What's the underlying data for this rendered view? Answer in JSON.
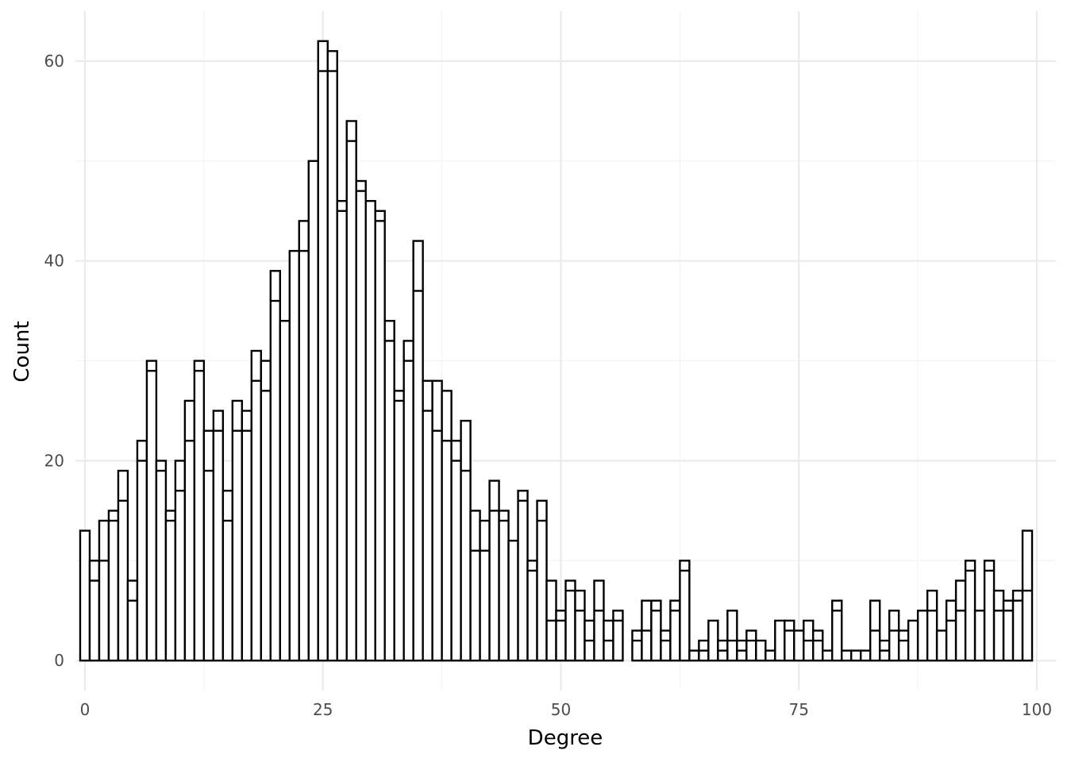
{
  "chart_data": {
    "type": "bar",
    "xlabel": "Degree",
    "ylabel": "Count",
    "xlim": [
      -1,
      102
    ],
    "ylim": [
      -3,
      65
    ],
    "xticks": [
      0,
      25,
      50,
      75,
      100
    ],
    "yticks": [
      0,
      20,
      40,
      60
    ],
    "grid": true,
    "legend": "none",
    "bar_fill": "#ffffff",
    "bar_outline": "#000000",
    "bin_width": 1,
    "x": [
      0,
      1,
      2,
      3,
      4,
      5,
      6,
      7,
      8,
      9,
      10,
      11,
      12,
      13,
      14,
      15,
      16,
      17,
      18,
      19,
      20,
      21,
      22,
      23,
      24,
      25,
      26,
      27,
      28,
      29,
      30,
      31,
      32,
      33,
      34,
      35,
      36,
      37,
      38,
      39,
      40,
      41,
      42,
      43,
      44,
      45,
      46,
      47,
      48,
      49,
      50,
      51,
      52,
      53,
      54,
      55,
      56,
      57,
      58,
      59,
      60,
      61,
      62,
      63,
      64,
      65,
      66,
      67,
      68,
      69,
      70,
      71,
      72,
      73,
      74,
      75,
      76,
      77,
      78,
      79,
      80,
      81,
      82,
      83,
      84,
      85,
      86,
      87,
      88,
      89,
      90,
      91,
      92,
      93,
      94,
      95,
      96,
      97,
      98,
      99
    ],
    "series": [
      {
        "values": [
          13,
          8,
          10,
          14,
          16,
          6,
          20,
          29,
          19,
          14,
          17,
          22,
          29,
          19,
          23,
          14,
          23,
          23,
          28,
          27,
          36,
          34,
          41,
          41,
          50,
          59,
          59,
          45,
          52,
          47,
          46,
          44,
          32,
          26,
          30,
          37,
          25,
          23,
          22,
          20,
          19,
          11,
          11,
          15,
          14,
          12,
          16,
          9,
          14,
          4,
          4,
          7,
          5,
          2,
          5,
          2,
          4,
          0,
          2,
          3,
          5,
          2,
          5,
          9,
          1,
          1,
          4,
          1,
          2,
          1,
          2,
          2,
          1,
          4,
          3,
          3,
          2,
          2,
          1,
          5,
          1,
          1,
          1,
          3,
          1,
          3,
          2,
          4,
          5,
          5,
          3,
          4,
          5,
          9,
          5,
          9,
          5,
          5,
          6,
          7
        ]
      },
      {
        "values": [
          0,
          2,
          4,
          1,
          3,
          2,
          2,
          1,
          1,
          1,
          3,
          4,
          1,
          4,
          2,
          3,
          3,
          2,
          3,
          3,
          3,
          0,
          0,
          3,
          0,
          3,
          2,
          1,
          2,
          1,
          0,
          1,
          2,
          1,
          2,
          5,
          3,
          5,
          5,
          2,
          5,
          4,
          3,
          3,
          1,
          0,
          1,
          1,
          2,
          4,
          1,
          1,
          2,
          2,
          3,
          2,
          1,
          0,
          1,
          3,
          1,
          1,
          1,
          1,
          0,
          1,
          0,
          1,
          3,
          1,
          1,
          0,
          0,
          0,
          1,
          0,
          2,
          1,
          0,
          1,
          0,
          0,
          0,
          3,
          1,
          2,
          1,
          0,
          0,
          2,
          0,
          2,
          3,
          1,
          0,
          1,
          2,
          1,
          1,
          6
        ]
      }
    ]
  }
}
